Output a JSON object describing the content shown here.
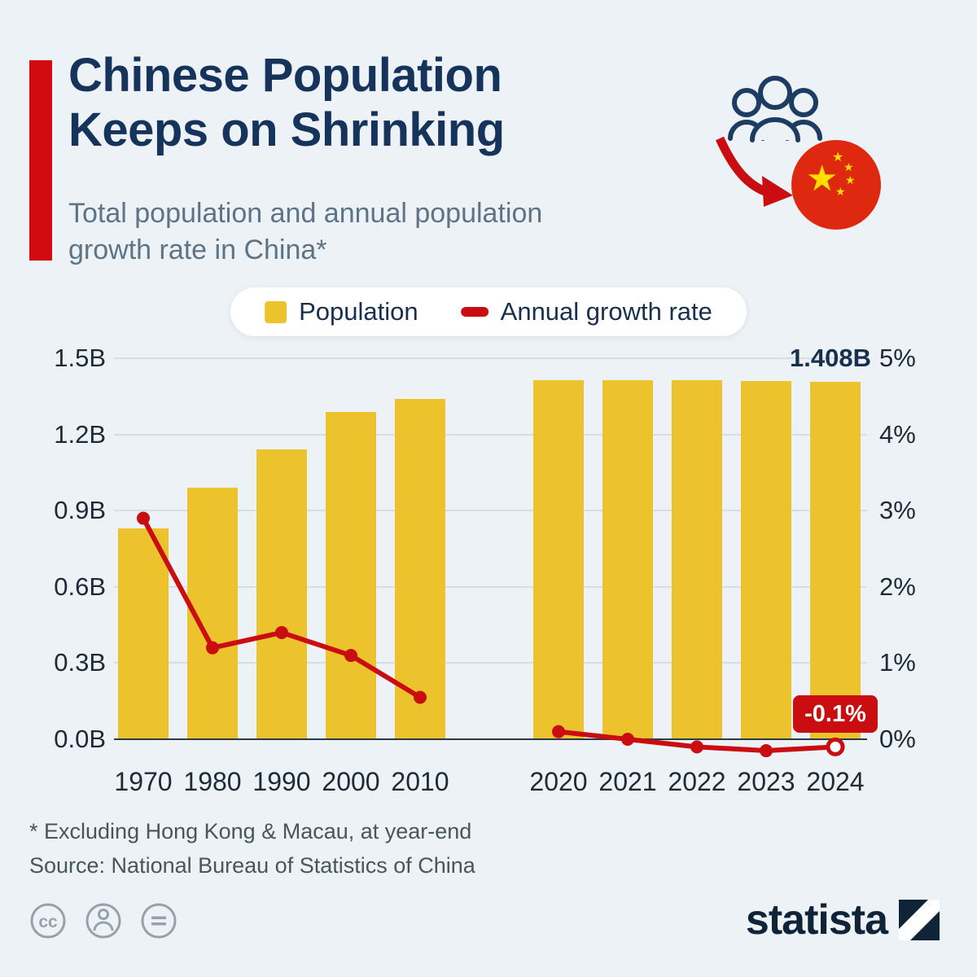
{
  "header": {
    "title_line1": "Chinese Population",
    "title_line2": "Keeps on Shrinking",
    "subtitle_line1": "Total population and annual population",
    "subtitle_line2": "growth rate in China*"
  },
  "legend": {
    "population": "Population",
    "growth": "Annual growth rate"
  },
  "chart_data": {
    "type": "bar+line",
    "categories": [
      "1970",
      "1980",
      "1990",
      "2000",
      "2010",
      "2020",
      "2021",
      "2022",
      "2023",
      "2024"
    ],
    "x_slots": [
      0,
      1,
      2,
      3,
      4,
      6,
      7,
      8,
      9,
      10
    ],
    "series": [
      {
        "name": "Population",
        "type": "bar",
        "unit": "B",
        "axis": "left",
        "values": [
          0.83,
          0.99,
          1.14,
          1.29,
          1.34,
          1.412,
          1.413,
          1.412,
          1.41,
          1.408
        ]
      },
      {
        "name": "Annual growth rate",
        "type": "line",
        "unit": "%",
        "axis": "right",
        "values": [
          2.9,
          1.2,
          1.4,
          1.1,
          0.55,
          0.1,
          0.0,
          -0.1,
          -0.15,
          -0.1
        ]
      }
    ],
    "left_axis": {
      "min": 0,
      "max": 1.5,
      "ticks": [
        "0.0B",
        "0.3B",
        "0.6B",
        "0.9B",
        "1.2B",
        "1.5B"
      ]
    },
    "right_axis": {
      "min": 0,
      "max": 5,
      "ticks": [
        "0%",
        "1%",
        "2%",
        "3%",
        "4%",
        "5%"
      ]
    },
    "annotations": {
      "last_bar_label": "1.408B",
      "last_point_label": "-0.1%"
    },
    "layout": {
      "grid": true,
      "legend_position": "top-center",
      "gap_after_category": "2010"
    },
    "colors": {
      "bar": "#edc32d",
      "line": "#c90d10",
      "accent": "#d20b10",
      "title": "#15335b"
    }
  },
  "footnotes": {
    "note": "* Excluding Hong Kong & Macau, at year-end",
    "source": "Source: National Bureau of Statistics of China"
  },
  "footer": {
    "brand": "statista",
    "license_icons": [
      "cc",
      "attribution",
      "no-derivatives"
    ]
  }
}
